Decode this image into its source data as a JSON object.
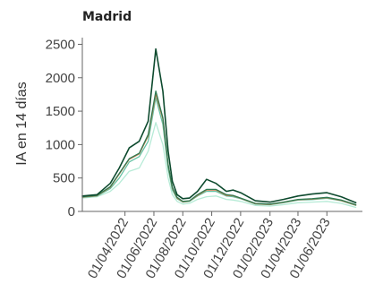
{
  "chart_data": {
    "type": "line",
    "title": "Madrid",
    "xlabel": "",
    "ylabel": "IA en 14 días",
    "ylim": [
      0,
      2600
    ],
    "yticks": [
      0,
      500,
      1000,
      1500,
      2000,
      2500
    ],
    "ytick_labels": [
      "0",
      "500",
      "1000",
      "1500",
      "2000",
      "2500"
    ],
    "xlim": [
      "2022-01-01",
      "2023-08-15"
    ],
    "xticks": [
      "2022-04-01",
      "2022-06-01",
      "2022-08-01",
      "2022-10-01",
      "2022-12-01",
      "2023-02-01",
      "2023-04-01",
      "2023-06-01"
    ],
    "xtick_labels": [
      "01/04/2022",
      "01/06/2022",
      "01/08/2022",
      "01/10/2022",
      "01/12/2022",
      "01/02/2023",
      "01/04/2023",
      "01/06/2023"
    ],
    "grid": false,
    "legend": "none",
    "x": [
      "2022-01-01",
      "2022-02-01",
      "2022-03-01",
      "2022-03-20",
      "2022-04-10",
      "2022-05-01",
      "2022-05-20",
      "2022-06-05",
      "2022-06-20",
      "2022-07-01",
      "2022-07-10",
      "2022-07-20",
      "2022-08-01",
      "2022-08-15",
      "2022-09-01",
      "2022-09-20",
      "2022-10-10",
      "2022-11-01",
      "2022-11-15",
      "2022-12-01",
      "2023-01-01",
      "2023-02-01",
      "2023-03-01",
      "2023-04-01",
      "2023-05-01",
      "2023-06-01",
      "2023-07-01",
      "2023-08-01"
    ],
    "series": [
      {
        "color": "#0d4a2e",
        "values": [
          230,
          250,
          420,
          650,
          950,
          1050,
          1350,
          2430,
          1800,
          900,
          450,
          250,
          190,
          200,
          300,
          480,
          420,
          300,
          320,
          280,
          160,
          140,
          180,
          230,
          260,
          280,
          220,
          130
        ]
      },
      {
        "color": "#2f7a53",
        "values": [
          220,
          240,
          370,
          570,
          790,
          870,
          1150,
          1800,
          1400,
          700,
          360,
          210,
          150,
          160,
          250,
          330,
          330,
          250,
          240,
          200,
          120,
          110,
          140,
          180,
          190,
          210,
          170,
          100
        ]
      },
      {
        "color": "#c97a4a",
        "values": [
          215,
          235,
          360,
          560,
          780,
          860,
          1130,
          1760,
          1380,
          690,
          350,
          200,
          145,
          155,
          240,
          320,
          320,
          240,
          235,
          195,
          115,
          105,
          135,
          175,
          185,
          205,
          165,
          95
        ]
      },
      {
        "color": "#66c2a4",
        "values": [
          210,
          230,
          340,
          500,
          740,
          820,
          1050,
          1700,
          1300,
          640,
          320,
          190,
          140,
          150,
          230,
          300,
          300,
          230,
          220,
          190,
          110,
          100,
          130,
          170,
          175,
          195,
          160,
          90
        ]
      },
      {
        "color": "#b7ebd7",
        "values": [
          200,
          220,
          300,
          420,
          600,
          650,
          900,
          1330,
          1000,
          500,
          250,
          150,
          110,
          120,
          180,
          220,
          230,
          180,
          170,
          150,
          90,
          80,
          100,
          130,
          140,
          150,
          120,
          60
        ]
      }
    ]
  }
}
